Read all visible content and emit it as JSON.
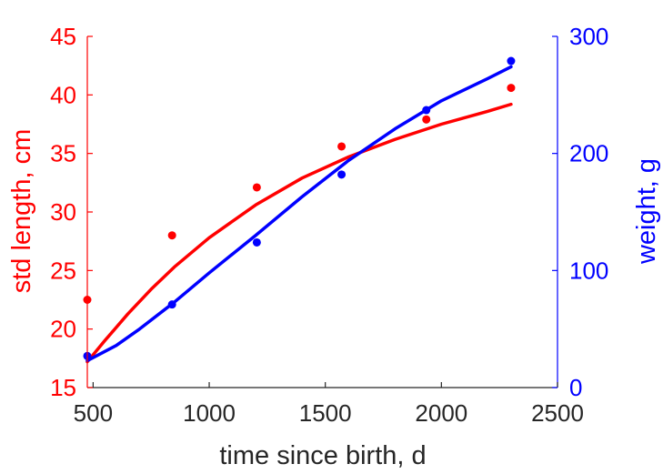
{
  "chart_data": {
    "type": "line",
    "title": "",
    "xlabel": "time since birth, d",
    "ylabel_left": "std length, cm",
    "ylabel_right": "weight, g",
    "xlim": [
      475,
      2500
    ],
    "ylim_left": [
      15,
      45
    ],
    "ylim_right": [
      0,
      300
    ],
    "xticks": [
      500,
      1000,
      1500,
      2000,
      2500
    ],
    "yticks_left": [
      15,
      20,
      25,
      30,
      35,
      40,
      45
    ],
    "yticks_right": [
      0,
      100,
      200,
      300
    ],
    "grid": false,
    "colors": {
      "left": "#ff0000",
      "right": "#0000ff",
      "x_axis": "#262626"
    },
    "series": [
      {
        "axis": "left",
        "color": "#ff0000",
        "points": [
          {
            "x": 475,
            "y": 22.5
          },
          {
            "x": 840,
            "y": 28.0
          },
          {
            "x": 1205,
            "y": 32.1
          },
          {
            "x": 1570,
            "y": 35.6
          },
          {
            "x": 1935,
            "y": 37.9
          },
          {
            "x": 2300,
            "y": 40.6
          }
        ],
        "fit": [
          {
            "x": 475,
            "y": 17.2
          },
          {
            "x": 550,
            "y": 19.0
          },
          {
            "x": 650,
            "y": 21.3
          },
          {
            "x": 750,
            "y": 23.4
          },
          {
            "x": 850,
            "y": 25.3
          },
          {
            "x": 1000,
            "y": 27.8
          },
          {
            "x": 1200,
            "y": 30.6
          },
          {
            "x": 1400,
            "y": 32.9
          },
          {
            "x": 1600,
            "y": 34.7
          },
          {
            "x": 1800,
            "y": 36.2
          },
          {
            "x": 2000,
            "y": 37.5
          },
          {
            "x": 2200,
            "y": 38.6
          },
          {
            "x": 2300,
            "y": 39.2
          }
        ]
      },
      {
        "axis": "right",
        "color": "#0000ff",
        "points": [
          {
            "x": 475,
            "y": 27
          },
          {
            "x": 840,
            "y": 71
          },
          {
            "x": 1205,
            "y": 124
          },
          {
            "x": 1570,
            "y": 182
          },
          {
            "x": 1935,
            "y": 237
          },
          {
            "x": 2300,
            "y": 279
          }
        ],
        "fit": [
          {
            "x": 475,
            "y": 23
          },
          {
            "x": 600,
            "y": 36
          },
          {
            "x": 700,
            "y": 50
          },
          {
            "x": 850,
            "y": 73
          },
          {
            "x": 1000,
            "y": 98
          },
          {
            "x": 1200,
            "y": 130
          },
          {
            "x": 1400,
            "y": 163
          },
          {
            "x": 1600,
            "y": 194
          },
          {
            "x": 1800,
            "y": 221
          },
          {
            "x": 2000,
            "y": 245
          },
          {
            "x": 2200,
            "y": 264
          },
          {
            "x": 2300,
            "y": 274
          }
        ]
      }
    ]
  }
}
